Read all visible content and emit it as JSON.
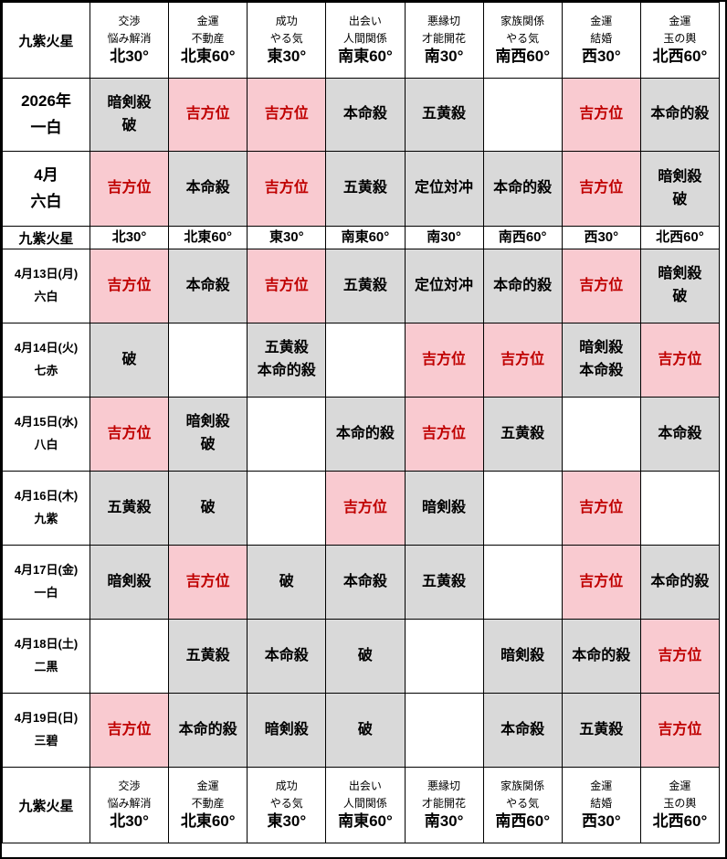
{
  "colors": {
    "good_bg": "#f9cad0",
    "good_text": "#c00000",
    "bad_bg": "#d9d9d9",
    "border": "#000000"
  },
  "table": {
    "corner_label": "九紫火星",
    "columns": [
      {
        "lines": [
          "交渉",
          "悩み解消",
          "北30°"
        ]
      },
      {
        "lines": [
          "金運",
          "不動産",
          "北東60°"
        ]
      },
      {
        "lines": [
          "成功",
          "やる気",
          "東30°"
        ]
      },
      {
        "lines": [
          "出会い",
          "人間関係",
          "南東60°"
        ]
      },
      {
        "lines": [
          "悪縁切",
          "才能開花",
          "南30°"
        ]
      },
      {
        "lines": [
          "家族関係",
          "やる気",
          "南西60°"
        ]
      },
      {
        "lines": [
          "金運",
          "結婚",
          "西30°"
        ]
      },
      {
        "lines": [
          "金運",
          "玉の輿",
          "北西60°"
        ]
      }
    ],
    "rows": [
      {
        "kind": "year",
        "label": [
          "2026年",
          "一白"
        ],
        "cells": [
          {
            "lines": [
              "暗剣殺",
              "破"
            ],
            "type": "bad"
          },
          {
            "lines": [
              "吉方位"
            ],
            "type": "good"
          },
          {
            "lines": [
              "吉方位"
            ],
            "type": "good"
          },
          {
            "lines": [
              "本命殺"
            ],
            "type": "bad"
          },
          {
            "lines": [
              "五黄殺"
            ],
            "type": "bad"
          },
          {
            "lines": [],
            "type": "none"
          },
          {
            "lines": [
              "吉方位"
            ],
            "type": "good"
          },
          {
            "lines": [
              "本命的殺"
            ],
            "type": "bad"
          }
        ]
      },
      {
        "kind": "month",
        "label": [
          "4月",
          "六白"
        ],
        "cells": [
          {
            "lines": [
              "吉方位"
            ],
            "type": "good"
          },
          {
            "lines": [
              "本命殺"
            ],
            "type": "bad"
          },
          {
            "lines": [
              "吉方位"
            ],
            "type": "good"
          },
          {
            "lines": [
              "五黄殺"
            ],
            "type": "bad"
          },
          {
            "lines": [
              "定位対冲"
            ],
            "type": "bad"
          },
          {
            "lines": [
              "本命的殺"
            ],
            "type": "bad"
          },
          {
            "lines": [
              "吉方位"
            ],
            "type": "good"
          },
          {
            "lines": [
              "暗剣殺",
              "破"
            ],
            "type": "bad"
          }
        ]
      },
      {
        "kind": "mid",
        "label": [
          "九紫火星"
        ],
        "cells": [
          {
            "lines": [
              "北30°"
            ],
            "type": "dir"
          },
          {
            "lines": [
              "北東60°"
            ],
            "type": "dir"
          },
          {
            "lines": [
              "東30°"
            ],
            "type": "dir"
          },
          {
            "lines": [
              "南東60°"
            ],
            "type": "dir"
          },
          {
            "lines": [
              "南30°"
            ],
            "type": "dir"
          },
          {
            "lines": [
              "南西60°"
            ],
            "type": "dir"
          },
          {
            "lines": [
              "西30°"
            ],
            "type": "dir"
          },
          {
            "lines": [
              "北西60°"
            ],
            "type": "dir"
          }
        ]
      },
      {
        "kind": "day",
        "label": [
          "4月13日(月)",
          "六白"
        ],
        "cells": [
          {
            "lines": [
              "吉方位"
            ],
            "type": "good"
          },
          {
            "lines": [
              "本命殺"
            ],
            "type": "bad"
          },
          {
            "lines": [
              "吉方位"
            ],
            "type": "good"
          },
          {
            "lines": [
              "五黄殺"
            ],
            "type": "bad"
          },
          {
            "lines": [
              "定位対冲"
            ],
            "type": "bad"
          },
          {
            "lines": [
              "本命的殺"
            ],
            "type": "bad"
          },
          {
            "lines": [
              "吉方位"
            ],
            "type": "good"
          },
          {
            "lines": [
              "暗剣殺",
              "破"
            ],
            "type": "bad"
          }
        ]
      },
      {
        "kind": "day",
        "label": [
          "4月14日(火)",
          "七赤"
        ],
        "cells": [
          {
            "lines": [
              "破"
            ],
            "type": "bad"
          },
          {
            "lines": [],
            "type": "none"
          },
          {
            "lines": [
              "五黄殺",
              "本命的殺"
            ],
            "type": "bad"
          },
          {
            "lines": [],
            "type": "none"
          },
          {
            "lines": [
              "吉方位"
            ],
            "type": "good"
          },
          {
            "lines": [
              "吉方位"
            ],
            "type": "good"
          },
          {
            "lines": [
              "暗剣殺",
              "本命殺"
            ],
            "type": "bad"
          },
          {
            "lines": [
              "吉方位"
            ],
            "type": "good"
          }
        ]
      },
      {
        "kind": "day",
        "label": [
          "4月15日(水)",
          "八白"
        ],
        "cells": [
          {
            "lines": [
              "吉方位"
            ],
            "type": "good"
          },
          {
            "lines": [
              "暗剣殺",
              "破"
            ],
            "type": "bad"
          },
          {
            "lines": [],
            "type": "none"
          },
          {
            "lines": [
              "本命的殺"
            ],
            "type": "bad"
          },
          {
            "lines": [
              "吉方位"
            ],
            "type": "good"
          },
          {
            "lines": [
              "五黄殺"
            ],
            "type": "bad"
          },
          {
            "lines": [],
            "type": "none"
          },
          {
            "lines": [
              "本命殺"
            ],
            "type": "bad"
          }
        ]
      },
      {
        "kind": "day",
        "label": [
          "4月16日(木)",
          "九紫"
        ],
        "cells": [
          {
            "lines": [
              "五黄殺"
            ],
            "type": "bad"
          },
          {
            "lines": [
              "破"
            ],
            "type": "bad"
          },
          {
            "lines": [],
            "type": "none"
          },
          {
            "lines": [
              "吉方位"
            ],
            "type": "good"
          },
          {
            "lines": [
              "暗剣殺"
            ],
            "type": "bad"
          },
          {
            "lines": [],
            "type": "none"
          },
          {
            "lines": [
              "吉方位"
            ],
            "type": "good"
          },
          {
            "lines": [],
            "type": "none"
          }
        ]
      },
      {
        "kind": "day",
        "label": [
          "4月17日(金)",
          "一白"
        ],
        "cells": [
          {
            "lines": [
              "暗剣殺"
            ],
            "type": "bad"
          },
          {
            "lines": [
              "吉方位"
            ],
            "type": "good"
          },
          {
            "lines": [
              "破"
            ],
            "type": "bad"
          },
          {
            "lines": [
              "本命殺"
            ],
            "type": "bad"
          },
          {
            "lines": [
              "五黄殺"
            ],
            "type": "bad"
          },
          {
            "lines": [],
            "type": "none"
          },
          {
            "lines": [
              "吉方位"
            ],
            "type": "good"
          },
          {
            "lines": [
              "本命的殺"
            ],
            "type": "bad"
          }
        ]
      },
      {
        "kind": "day",
        "label": [
          "4月18日(土)",
          "二黒"
        ],
        "cells": [
          {
            "lines": [],
            "type": "none"
          },
          {
            "lines": [
              "五黄殺"
            ],
            "type": "bad"
          },
          {
            "lines": [
              "本命殺"
            ],
            "type": "bad"
          },
          {
            "lines": [
              "破"
            ],
            "type": "bad"
          },
          {
            "lines": [],
            "type": "none"
          },
          {
            "lines": [
              "暗剣殺"
            ],
            "type": "bad"
          },
          {
            "lines": [
              "本命的殺"
            ],
            "type": "bad"
          },
          {
            "lines": [
              "吉方位"
            ],
            "type": "good"
          }
        ]
      },
      {
        "kind": "day",
        "label": [
          "4月19日(日)",
          "三碧"
        ],
        "cells": [
          {
            "lines": [
              "吉方位"
            ],
            "type": "good"
          },
          {
            "lines": [
              "本命的殺"
            ],
            "type": "bad"
          },
          {
            "lines": [
              "暗剣殺"
            ],
            "type": "bad"
          },
          {
            "lines": [
              "破"
            ],
            "type": "bad"
          },
          {
            "lines": [],
            "type": "none"
          },
          {
            "lines": [
              "本命殺"
            ],
            "type": "bad"
          },
          {
            "lines": [
              "五黄殺"
            ],
            "type": "bad"
          },
          {
            "lines": [
              "吉方位"
            ],
            "type": "good"
          }
        ]
      }
    ]
  }
}
